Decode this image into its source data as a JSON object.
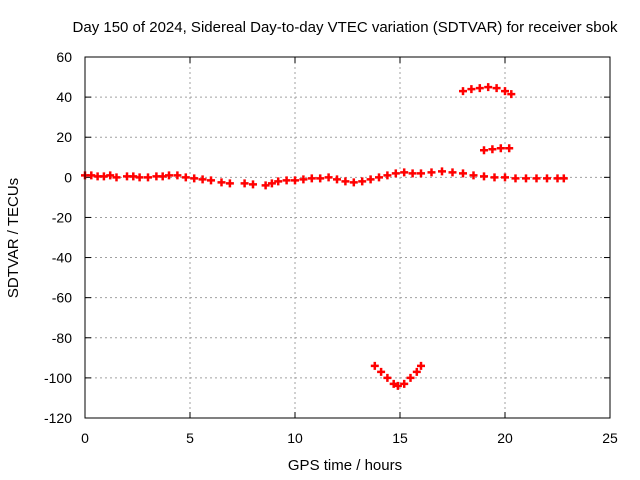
{
  "chart_data": {
    "type": "scatter",
    "title": "Day 150 of 2024, Sidereal Day-to-day VTEC variation (SDTVAR) for receiver sbok",
    "xlabel": "GPS time / hours",
    "ylabel": "SDTVAR / TECUs",
    "xlim": [
      0,
      25
    ],
    "ylim": [
      -120,
      60
    ],
    "xticks": [
      "0",
      "5",
      "10",
      "15",
      "20",
      "25"
    ],
    "yticks": [
      "60",
      "40",
      "20",
      "0",
      "-20",
      "-40",
      "-60",
      "-80",
      "-100",
      "-120"
    ],
    "grid": true,
    "marker": "plus",
    "series": [
      {
        "name": "SDTVAR",
        "color": "#ff0000",
        "x": [
          0.0,
          0.3,
          0.6,
          0.9,
          1.2,
          1.5,
          2.0,
          2.3,
          2.6,
          3.0,
          3.4,
          3.7,
          4.0,
          4.4,
          4.8,
          5.2,
          5.6,
          6.0,
          6.5,
          6.9,
          7.6,
          8.0,
          8.6,
          8.9,
          9.2,
          9.6,
          10.0,
          10.4,
          10.8,
          11.2,
          11.6,
          12.0,
          12.4,
          12.8,
          13.2,
          13.6,
          14.0,
          14.4,
          14.8,
          15.2,
          15.6,
          16.0,
          16.5,
          17.0,
          17.5,
          18.0,
          18.5,
          19.0,
          19.5,
          20.0,
          20.5,
          21.0,
          21.5,
          22.0,
          22.5,
          22.8,
          18.0,
          18.4,
          18.8,
          19.2,
          19.6,
          20.0,
          20.3,
          19.0,
          19.4,
          19.8,
          20.2,
          13.8,
          14.1,
          14.4,
          14.7,
          14.9,
          15.2,
          15.5,
          15.8,
          16.0
        ],
        "y": [
          1,
          1,
          0.5,
          0.5,
          1,
          0,
          0.5,
          0.5,
          0,
          0,
          0.5,
          0.5,
          1,
          1,
          0,
          -0.5,
          -1,
          -1.5,
          -2.5,
          -3,
          -3,
          -3.5,
          -4,
          -3,
          -2,
          -1.5,
          -1.5,
          -1,
          -0.5,
          -0.5,
          0,
          -1,
          -2,
          -2.5,
          -2,
          -1,
          0,
          1,
          2,
          2.5,
          2,
          2,
          2.5,
          3,
          2.5,
          2,
          1,
          0.5,
          0,
          0,
          -0.5,
          -0.5,
          -0.5,
          -0.5,
          -0.5,
          -0.5,
          43,
          44,
          44.5,
          45,
          44.5,
          43,
          41.5,
          13.5,
          14,
          14.5,
          14.5,
          -94,
          -97,
          -100,
          -103,
          -104,
          -103,
          -100,
          -97,
          -94
        ]
      }
    ]
  }
}
